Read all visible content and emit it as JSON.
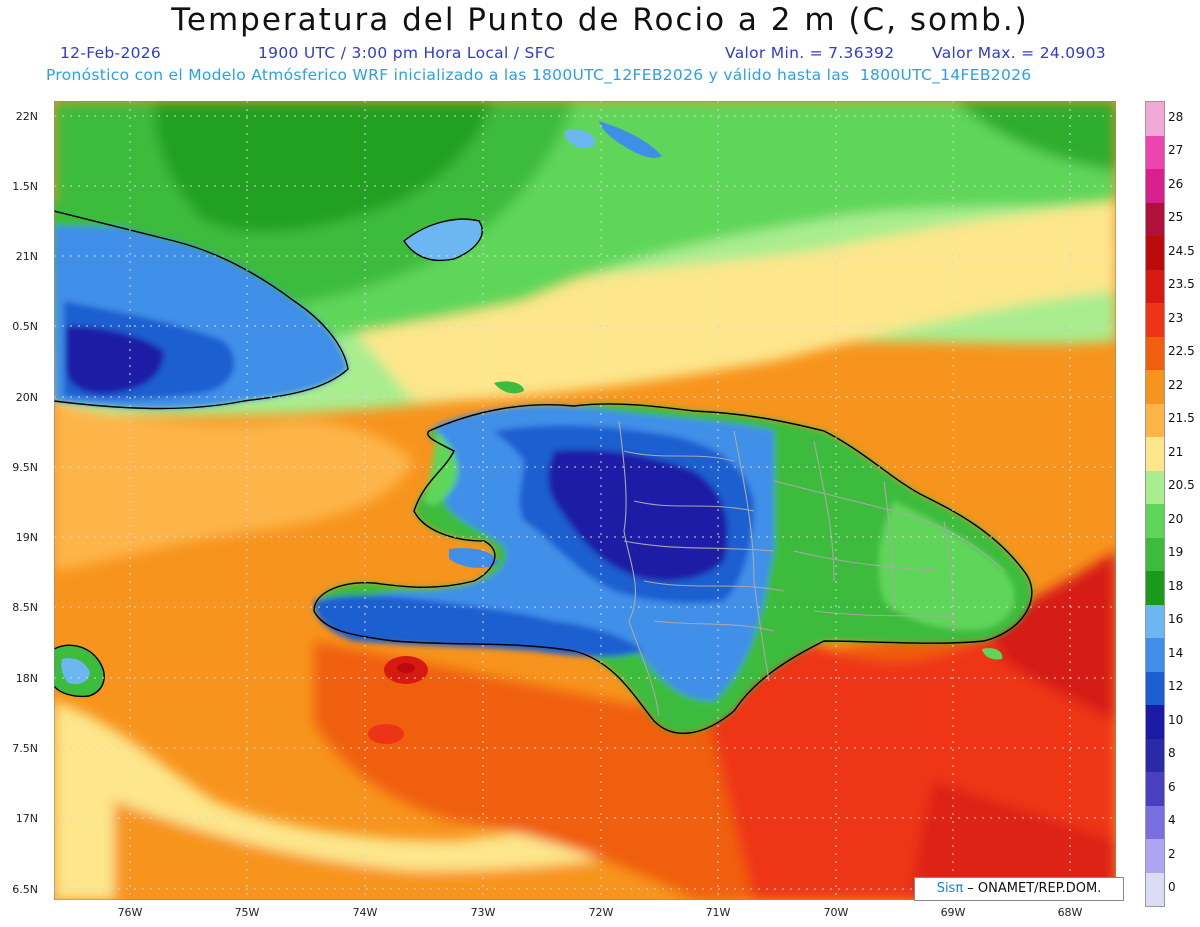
{
  "header": {
    "title": "Temperatura del Punto de Rocio a 2 m (C, somb.)",
    "date": "12-Feb-2026",
    "time": "1900 UTC / 3:00 pm Hora Local / SFC",
    "valor_min": "Valor Min. = 7.36392",
    "valor_max": "Valor Max. = 24.0903",
    "model_info": "Pronóstico con el Modelo Atmósferico WRF inicializado a las 1800UTC_12FEB2026 y válido hasta las  1800UTC_14FEB2026"
  },
  "map": {
    "lat_labels": [
      "22N",
      "1.5N",
      "21N",
      "0.5N",
      "20N",
      "9.5N",
      "19N",
      "8.5N",
      "18N",
      "7.5N",
      "17N",
      "6.5N"
    ],
    "lon_labels": [
      "76W",
      "75W",
      "74W",
      "73W",
      "72W",
      "71W",
      "70W",
      "69W",
      "68W"
    ],
    "lat_range": [
      16.5,
      22.1
    ],
    "lon_range": [
      -76.6,
      -67.6
    ],
    "grid": "dotted"
  },
  "legend": {
    "levels": [
      "28",
      "27",
      "26",
      "25",
      "24.5",
      "23.5",
      "23",
      "22.5",
      "22",
      "21.5",
      "21",
      "20.5",
      "20",
      "19",
      "18",
      "16",
      "14",
      "12",
      "10",
      "8",
      "6",
      "4",
      "2",
      "0"
    ],
    "colors": [
      "#f3a9d8",
      "#ee44b0",
      "#d91e8e",
      "#b0103a",
      "#bb0a0a",
      "#d61a12",
      "#ee3416",
      "#f05e10",
      "#f7941d",
      "#fdb548",
      "#fde68c",
      "#a9ed8f",
      "#5fd65a",
      "#3cbb3c",
      "#1a9a1a",
      "#6cb7f2",
      "#3f8fe8",
      "#1c5fd0",
      "#1a1aa6",
      "#2a2aa8",
      "#4a3fc0",
      "#7b6ee0",
      "#aea4f2",
      "#dcdcf7"
    ]
  },
  "credit": {
    "brand": "Sisπ",
    "text": " – ONAMET/REP.DOM."
  }
}
